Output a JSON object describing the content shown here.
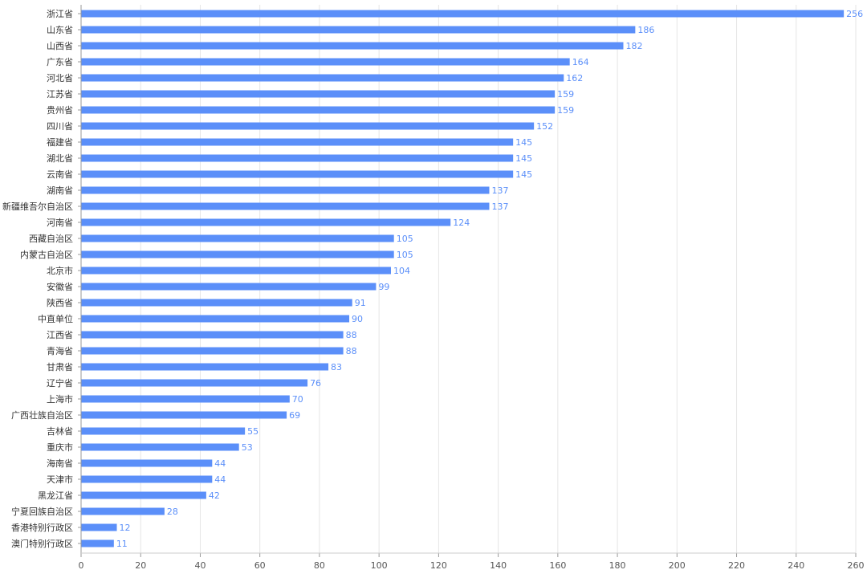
{
  "chart_data": {
    "type": "bar",
    "orientation": "horizontal",
    "categories": [
      "浙江省",
      "山东省",
      "山西省",
      "广东省",
      "河北省",
      "江苏省",
      "贵州省",
      "四川省",
      "福建省",
      "湖北省",
      "云南省",
      "湖南省",
      "新疆维吾尔自治区",
      "河南省",
      "西藏自治区",
      "内蒙古自治区",
      "北京市",
      "安徽省",
      "陕西省",
      "中直单位",
      "江西省",
      "青海省",
      "甘肃省",
      "辽宁省",
      "上海市",
      "广西壮族自治区",
      "吉林省",
      "重庆市",
      "海南省",
      "天津市",
      "黑龙江省",
      "宁夏回族自治区",
      "香港特别行政区",
      "澳门特别行政区"
    ],
    "values": [
      256,
      186,
      182,
      164,
      162,
      159,
      159,
      152,
      145,
      145,
      145,
      137,
      137,
      124,
      105,
      105,
      104,
      99,
      91,
      90,
      88,
      88,
      83,
      76,
      70,
      69,
      55,
      53,
      44,
      44,
      42,
      28,
      12,
      11
    ],
    "xlim": [
      0,
      260
    ],
    "xticks": [
      0,
      20,
      40,
      60,
      80,
      100,
      120,
      140,
      160,
      180,
      200,
      220,
      240,
      260
    ],
    "grid": "vertical",
    "bar_color": "#5b8ff9",
    "label_color": "#5b8ff9",
    "data_labels": true,
    "legend": "none",
    "title": ""
  }
}
